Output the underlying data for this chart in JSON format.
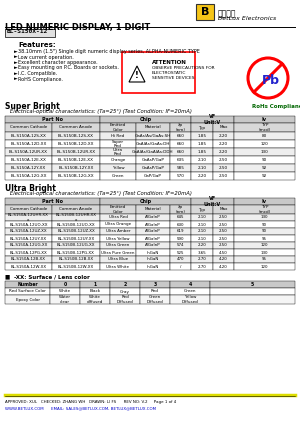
{
  "title_product": "LED NUMERIC DISPLAY, 1 DIGIT",
  "part_number": "BL-S150X-12",
  "features": [
    "38.10mm (1.5\") Single digit numeric display series, ALPHA-NUMERIC TYPE",
    "Low current operation.",
    "Excellent character appearance.",
    "Easy mounting on P.C. Boards or sockets.",
    "I.C. Compatible.",
    "RoHS Compliance."
  ],
  "super_bright_title": "Super Bright",
  "super_bright_subtitle": "   Electrical-optical characteristics: (Ta=25°) (Test Condition: IF=20mA)",
  "sb_rows": [
    [
      "BL-S150A-12S-XX",
      "BL-S150B-12S-XX",
      "Hi Red",
      "GaAs/As/GaAs:SH",
      "660",
      "1.85",
      "2.20",
      "80"
    ],
    [
      "BL-S150A-12D-XX",
      "BL-S150B-12D-XX",
      "Super\nRed",
      "GaAlAs/GaAs:DH",
      "660",
      "1.85",
      "2.20",
      "120"
    ],
    [
      "BL-S150A-12UR-XX",
      "BL-S150B-12UR-XX",
      "Ultra\nRed",
      "GaAlAs/GaAlAs:DDH",
      "660",
      "1.85",
      "2.20",
      "130"
    ],
    [
      "BL-S150A-12E-XX",
      "BL-S150B-12E-XX",
      "Orange",
      "GaAsP/GaP",
      "635",
      "2.10",
      "2.50",
      "90"
    ],
    [
      "BL-S150A-12Y-XX",
      "BL-S150B-12Y-XX",
      "Yellow",
      "GaAsP/GaP",
      "585",
      "2.10",
      "2.50",
      "92"
    ],
    [
      "BL-S150A-12G-XX",
      "BL-S150B-12G-XX",
      "Green",
      "GaP/GaP",
      "570",
      "2.20",
      "2.50",
      "92"
    ]
  ],
  "ultra_bright_title": "Ultra Bright",
  "ultra_bright_subtitle": "   Electrical-optical characteristics: (Ta=25°) (Test Condition: IF=20mA)",
  "ub_rows": [
    [
      "BL-S150A-12UHR-XX\nx",
      "BL-S150B-12UHR-XX\nx",
      "Ultra Red",
      "AlGaInP",
      "645",
      "2.10",
      "2.50",
      "130"
    ],
    [
      "BL-S150A-12UO-XX",
      "BL-S150B-12UO-XX",
      "Ultra Orange",
      "AlGaInP",
      "630",
      "2.10",
      "2.50",
      "90"
    ],
    [
      "BL-S150A-12UZ-XX",
      "BL-S150B-12UZ-XX",
      "Ultra Amber",
      "AlGaInP",
      "619",
      "2.10",
      "2.50",
      "90"
    ],
    [
      "BL-S150A-12UY-XX",
      "BL-S150B-12UY-XX",
      "Ultra Yellow",
      "AlGaInP",
      "590",
      "2.10",
      "2.50",
      "95"
    ],
    [
      "BL-S150A-12UG-XX",
      "BL-S150B-12UG-XX",
      "Ultra Green",
      "AlGaInP",
      "574",
      "2.20",
      "2.50",
      "120"
    ],
    [
      "BL-S150A-12PG-XX",
      "BL-S150B-12PG-XX",
      "Ultra Pure Green",
      "InGaN",
      "525",
      "3.65",
      "4.50",
      "130"
    ],
    [
      "BL-S150A-12B-XX",
      "BL-S150B-12B-XX",
      "Ultra Blue",
      "InGaN",
      "470",
      "2.70",
      "4.20",
      "95"
    ],
    [
      "BL-S150A-12W-XX",
      "BL-S150B-12W-XX",
      "Ultra White",
      "InGaN",
      "/",
      "2.70",
      "4.20",
      "120"
    ]
  ],
  "color_note": "■  -XX: Surface / Lens color",
  "color_table_headers": [
    "Number",
    "0",
    "1",
    "2",
    "3",
    "4",
    "5"
  ],
  "color_table_row1_label": "Red Surface Color",
  "color_table_row1": [
    "White",
    "Black",
    "Gray",
    "Red",
    "Green",
    ""
  ],
  "color_table_row2_label": "Epoxy Color",
  "color_table_row2": [
    "Water\nclear",
    "White\ndiffused",
    "Red\nDiffused",
    "Green\nDiffused",
    "Yellow\nDiffused",
    ""
  ],
  "footer_left": "APPROVED: XUL   CHECKED: ZHANG WH   DRAWN: LI FS      REV NO: V.2     Page 1 of 4",
  "footer_url": "WWW.BETLUX.COM      EMAIL: SALES@BETLUX.COM, BETLUX@BETLUX.COM",
  "company_cn": "百流光电",
  "company_en": "BetLux Electronics",
  "bg_color": "#ffffff",
  "header_bg": "#c8c8c8",
  "subheader_bg": "#d8d8d8",
  "row_bg_even": "#eeeeee",
  "row_bg_odd": "#ffffff"
}
